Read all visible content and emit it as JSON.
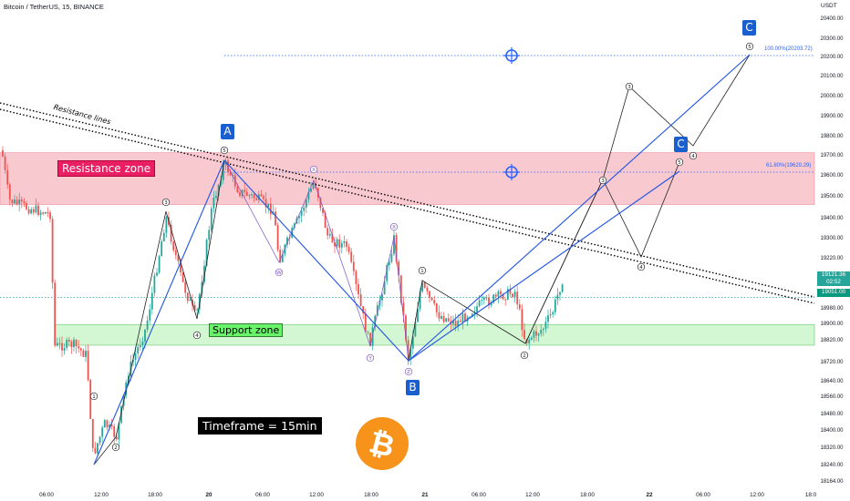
{
  "header": {
    "title": "Bitcoin / TetherUS, 15, BINANCE",
    "currency": "USDT"
  },
  "chart_data": {
    "type": "candlestick",
    "symbol": "Bitcoin / TetherUS",
    "interval": "15",
    "exchange": "BINANCE",
    "y_ticks": [
      "20400.00",
      "20300.00",
      "20200.00",
      "20100.00",
      "20000.00",
      "19900.00",
      "19800.00",
      "19700.00",
      "19600.00",
      "19500.00",
      "19400.00",
      "19300.00",
      "19220.00",
      "19121.36",
      "19051.00",
      "18980.00",
      "18900.00",
      "18820.00",
      "18720.00",
      "18640.00",
      "18560.00",
      "18480.00",
      "18400.00",
      "18320.00",
      "18240.00",
      "18164.00"
    ],
    "x_ticks": [
      "06:00",
      "12:00",
      "18:00",
      "20",
      "06:00",
      "12:00",
      "18:00",
      "21",
      "06:00",
      "12:00",
      "18:00",
      "22",
      "06:00",
      "12:00",
      "18:0"
    ],
    "current_price": "19121.36",
    "countdown": "02:52",
    "reference_price": "19051.00",
    "zones": [
      {
        "label": "Resistance zone",
        "from": 19500,
        "to": 19750,
        "color": "#f8bbc4"
      },
      {
        "label": "Support zone",
        "from": 18820,
        "to": 18920,
        "color": "#c8f5c8"
      }
    ],
    "fib_levels": [
      {
        "label": "100.00%(20203.72)",
        "value": 20203.72
      },
      {
        "label": "61.80%(19620.29)",
        "value": 19620.29
      }
    ],
    "annotations": {
      "resistance_lines": "Resistance lines",
      "timeframe": "Timeframe = 15min",
      "wave_labels": [
        "A",
        "B",
        "C",
        "C"
      ],
      "impulse_1": [
        "1",
        "2",
        "3",
        "4",
        "5"
      ],
      "corrective": [
        "W",
        "X",
        "Y",
        "Z"
      ],
      "impulse_2": [
        "1",
        "2",
        "3",
        "4",
        "5"
      ]
    },
    "colors": {
      "up": "#26a69a",
      "down": "#ef5350",
      "wave_line": "#1e53e5",
      "resistance_fill": "#f9c9d0",
      "support_fill": "#d3f7d3",
      "bitcoin_logo": "#f7931a"
    }
  }
}
